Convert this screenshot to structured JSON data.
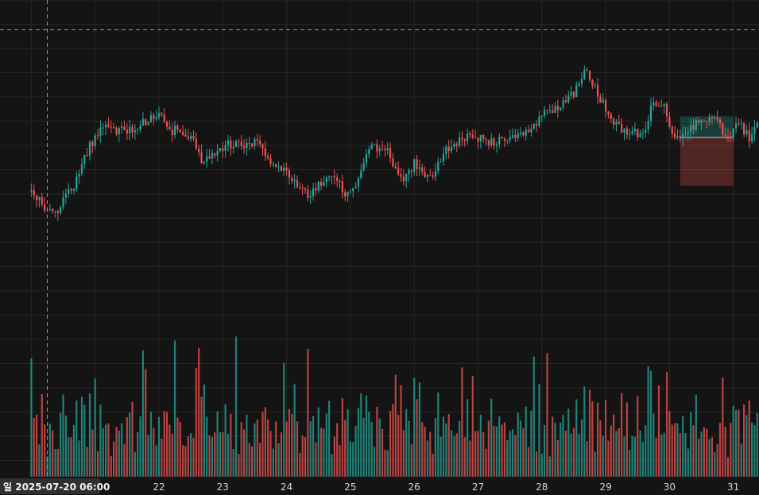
{
  "chart_data": {
    "type": "candlestick",
    "title": "",
    "x_axis": {
      "start": "2025-07-20 00:00",
      "end": "2025-07-31 12:00",
      "candle_interval": "1h",
      "tick_labels": [
        "22",
        "23",
        "24",
        "25",
        "26",
        "27",
        "28",
        "29",
        "30",
        "31"
      ]
    },
    "crosshair": {
      "time": "2025-07-20 06:00",
      "label_parts": [
        "일",
        "2025-07-20",
        "06:00"
      ]
    },
    "price_range": [
      0,
      100
    ],
    "volume_range": [
      0,
      100
    ],
    "grid": true,
    "colors": {
      "background": "#141414",
      "grid": "#262626",
      "up": "#26a69a",
      "down": "#ef5350",
      "crosshair": "#9a9a9a",
      "position_profit": "#26a69a",
      "position_loss": "#ef5350"
    },
    "price_anchors": [
      [
        "2025-07-20 00:00",
        47
      ],
      [
        "2025-07-20 05:00",
        42
      ],
      [
        "2025-07-20 10:00",
        41
      ],
      [
        "2025-07-20 16:00",
        49
      ],
      [
        "2025-07-20 22:00",
        62
      ],
      [
        "2025-07-21 04:00",
        70
      ],
      [
        "2025-07-21 08:00",
        67
      ],
      [
        "2025-07-21 14:00",
        68
      ],
      [
        "2025-07-21 20:00",
        71
      ],
      [
        "2025-07-22 00:00",
        73
      ],
      [
        "2025-07-22 04:00",
        67
      ],
      [
        "2025-07-22 08:00",
        68
      ],
      [
        "2025-07-22 12:00",
        65
      ],
      [
        "2025-07-22 16:00",
        57
      ],
      [
        "2025-07-22 20:00",
        60
      ],
      [
        "2025-07-23 02:00",
        63
      ],
      [
        "2025-07-23 06:00",
        62
      ],
      [
        "2025-07-23 12:00",
        64
      ],
      [
        "2025-07-23 18:00",
        57
      ],
      [
        "2025-07-23 22:00",
        55
      ],
      [
        "2025-07-24 04:00",
        50
      ],
      [
        "2025-07-24 08:00",
        46
      ],
      [
        "2025-07-24 14:00",
        51
      ],
      [
        "2025-07-24 18:00",
        53
      ],
      [
        "2025-07-24 22:00",
        45
      ],
      [
        "2025-07-25 02:00",
        50
      ],
      [
        "2025-07-25 06:00",
        58
      ],
      [
        "2025-07-25 08:00",
        63
      ],
      [
        "2025-07-25 14:00",
        60
      ],
      [
        "2025-07-25 20:00",
        50
      ],
      [
        "2025-07-26 00:00",
        57
      ],
      [
        "2025-07-26 04:00",
        52
      ],
      [
        "2025-07-26 08:00",
        54
      ],
      [
        "2025-07-26 12:00",
        61
      ],
      [
        "2025-07-26 18:00",
        65
      ],
      [
        "2025-07-27 00:00",
        65
      ],
      [
        "2025-07-27 06:00",
        63
      ],
      [
        "2025-07-27 12:00",
        66
      ],
      [
        "2025-07-27 18:00",
        66
      ],
      [
        "2025-07-28 00:00",
        72
      ],
      [
        "2025-07-28 06:00",
        75
      ],
      [
        "2025-07-28 12:00",
        80
      ],
      [
        "2025-07-28 16:00",
        87
      ],
      [
        "2025-07-28 20:00",
        82
      ],
      [
        "2025-07-29 02:00",
        70
      ],
      [
        "2025-07-29 08:00",
        67
      ],
      [
        "2025-07-29 14:00",
        66
      ],
      [
        "2025-07-29 18:00",
        77
      ],
      [
        "2025-07-29 22:00",
        75
      ],
      [
        "2025-07-30 02:00",
        64
      ],
      [
        "2025-07-30 06:00",
        66
      ],
      [
        "2025-07-30 12:00",
        71
      ],
      [
        "2025-07-30 18:00",
        70
      ],
      [
        "2025-07-30 22:00",
        65
      ],
      [
        "2025-07-31 02:00",
        71
      ],
      [
        "2025-07-31 06:00",
        64
      ],
      [
        "2025-07-31 12:00",
        73
      ]
    ],
    "position_tool": {
      "start": "2025-07-30 04:00",
      "end": "2025-07-31 00:00",
      "entry": 65,
      "target": 72,
      "stop": 49
    }
  }
}
